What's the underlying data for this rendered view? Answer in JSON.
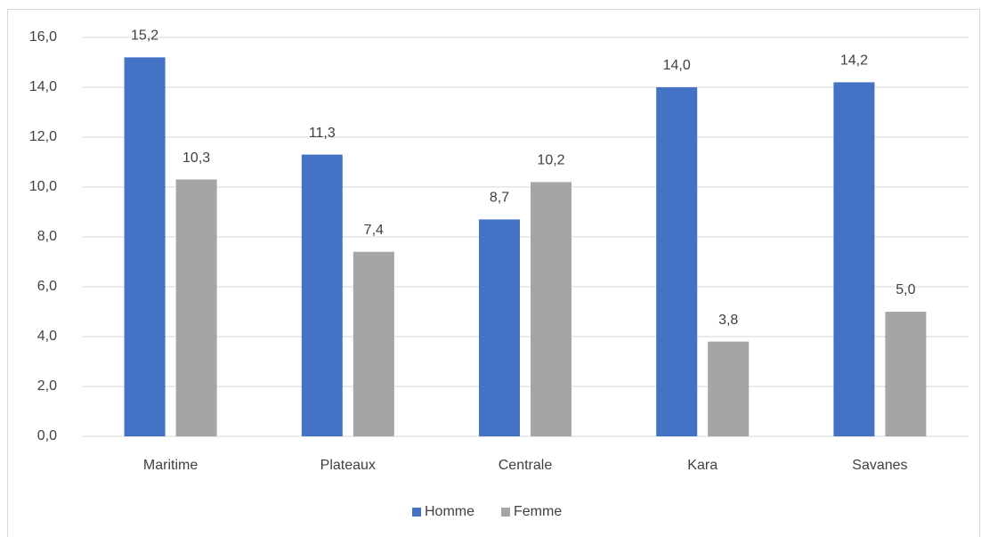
{
  "chart_data": {
    "type": "bar",
    "categories": [
      "Maritime",
      "Plateaux",
      "Centrale",
      "Kara",
      "Savanes"
    ],
    "series": [
      {
        "name": "Homme",
        "color": "#4472c4",
        "values": [
          15.2,
          11.3,
          8.7,
          14.0,
          14.2
        ],
        "value_labels": [
          "15,2",
          "11,3",
          "8,7",
          "14,0",
          "14,2"
        ]
      },
      {
        "name": "Femme",
        "color": "#a5a5a5",
        "values": [
          10.3,
          7.4,
          10.2,
          3.8,
          5.0
        ],
        "value_labels": [
          "10,3",
          "7,4",
          "10,2",
          "3,8",
          "5,0"
        ]
      }
    ],
    "ylim": [
      0,
      16
    ],
    "yticks": [
      {
        "value": 0,
        "label": "0,0"
      },
      {
        "value": 2,
        "label": "2,0"
      },
      {
        "value": 4,
        "label": "4,0"
      },
      {
        "value": 6,
        "label": "6,0"
      },
      {
        "value": 8,
        "label": "8,0"
      },
      {
        "value": 10,
        "label": "10,0"
      },
      {
        "value": 12,
        "label": "12,0"
      },
      {
        "value": 14,
        "label": "14,0"
      },
      {
        "value": 16,
        "label": "16,0"
      }
    ],
    "grid": true,
    "legend": "bottom"
  }
}
